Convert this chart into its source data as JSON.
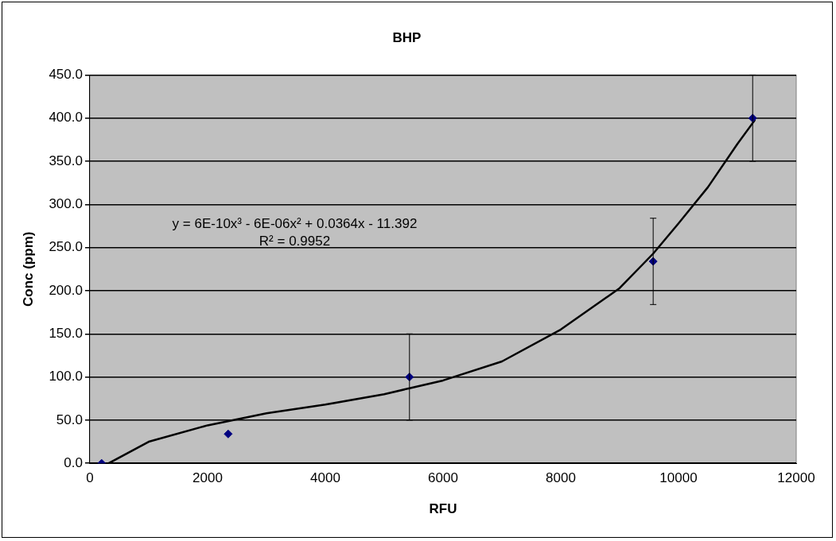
{
  "chart_data": {
    "type": "scatter",
    "title": "BHP",
    "xlabel": "RFU",
    "ylabel": "Conc (ppm)",
    "x": [
      200,
      2350,
      5430,
      9570,
      11260
    ],
    "series": [
      {
        "color": "#000080",
        "values": [
          0,
          34,
          100,
          234,
          400
        ],
        "errors": [
          null,
          null,
          50,
          50,
          50
        ]
      },
      {
        "type": "line",
        "color": "#000000",
        "x": [
          320,
          1000,
          2000,
          3000,
          4000,
          5000,
          5430,
          6000,
          7000,
          8000,
          9000,
          9570,
          10000,
          10500,
          11000,
          11300
        ],
        "values": [
          0,
          25,
          44,
          58,
          68,
          80,
          87,
          96,
          118,
          155,
          203,
          243,
          278,
          320,
          370,
          398
        ],
        "marker": "none"
      }
    ],
    "xlim": [
      0,
      12000
    ],
    "xticks": [
      0,
      2000,
      4000,
      6000,
      8000,
      10000,
      12000
    ],
    "ylim": [
      0,
      450
    ],
    "yticks": [
      {
        "value": 0,
        "label": "0.0"
      },
      {
        "value": 50,
        "label": "50.0"
      },
      {
        "value": 100,
        "label": "100.0"
      },
      {
        "value": 150,
        "label": "150.0"
      },
      {
        "value": 200,
        "label": "200.0"
      },
      {
        "value": 250,
        "label": "250.0"
      },
      {
        "value": 300,
        "label": "300.0"
      },
      {
        "value": 350,
        "label": "350.0"
      },
      {
        "value": 400,
        "label": "400.0"
      },
      {
        "value": 450,
        "label": "450.0"
      }
    ],
    "annotations": [
      "y = 6E-10x³ - 6E-06x² + 0.0364x - 11.392",
      "R² = 0.9952"
    ],
    "grid": "y",
    "legend": false,
    "marker": "diamond",
    "line_style": "solid"
  }
}
